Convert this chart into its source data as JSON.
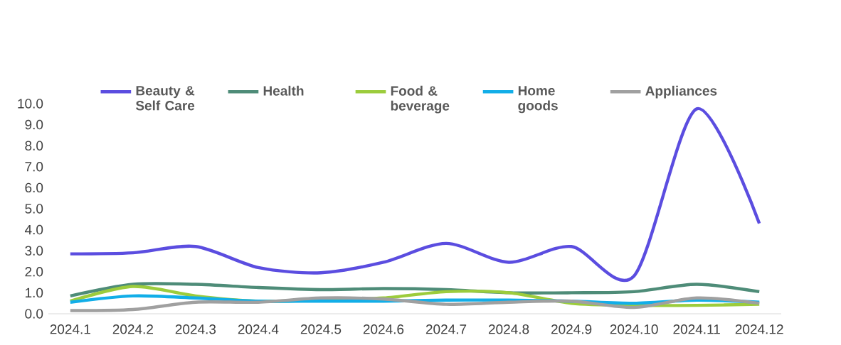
{
  "chart_data": {
    "type": "line",
    "categories": [
      "2024.1",
      "2024.2",
      "2024.3",
      "2024.4",
      "2024.5",
      "2024.6",
      "2024.7",
      "2024.8",
      "2024.9",
      "2024.10",
      "2024.11",
      "2024.12"
    ],
    "series": [
      {
        "name": "Beauty & Self Care",
        "color": "#5b4de0",
        "values": [
          2.85,
          2.9,
          3.2,
          2.2,
          1.95,
          2.45,
          3.35,
          2.45,
          3.2,
          1.8,
          9.75,
          4.3
        ]
      },
      {
        "name": "Health",
        "color": "#4e8c78",
        "values": [
          0.85,
          1.4,
          1.4,
          1.25,
          1.15,
          1.2,
          1.15,
          1.0,
          1.0,
          1.05,
          1.4,
          1.05
        ]
      },
      {
        "name": "Food & beverage",
        "color": "#9ccc3c",
        "values": [
          0.6,
          1.3,
          0.85,
          0.6,
          0.65,
          0.75,
          1.05,
          1.0,
          0.5,
          0.4,
          0.4,
          0.45
        ]
      },
      {
        "name": "Home goods",
        "color": "#12aee8",
        "values": [
          0.55,
          0.85,
          0.75,
          0.6,
          0.6,
          0.6,
          0.65,
          0.65,
          0.6,
          0.5,
          0.65,
          0.55
        ]
      },
      {
        "name": "Appliances",
        "color": "#a0a0a0",
        "values": [
          0.15,
          0.2,
          0.55,
          0.55,
          0.75,
          0.7,
          0.45,
          0.55,
          0.6,
          0.3,
          0.75,
          0.5
        ]
      }
    ],
    "ylim": [
      0,
      10
    ],
    "yticks": [
      {
        "value": 0,
        "label": "0.0"
      },
      {
        "value": 1,
        "label": "1.0"
      },
      {
        "value": 2,
        "label": "2.0"
      },
      {
        "value": 3,
        "label": "3.0"
      },
      {
        "value": 4,
        "label": "4.0"
      },
      {
        "value": 5,
        "label": "5.0"
      },
      {
        "value": 6,
        "label": "6.0"
      },
      {
        "value": 7,
        "label": "7.0"
      },
      {
        "value": 8,
        "label": "8.0"
      },
      {
        "value": 9,
        "label": "9.0"
      },
      {
        "value": 10,
        "label": "10.0"
      }
    ],
    "grid": false,
    "legend": "top",
    "marker": "none",
    "line_style": "solid"
  }
}
